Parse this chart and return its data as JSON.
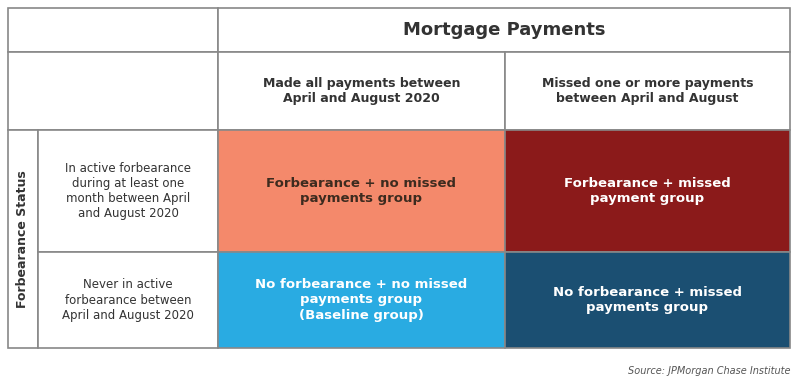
{
  "title": "Mortgage Payments",
  "forbearance_label": "Forbearance Status",
  "col_headers": [
    "Made all payments between\nApril and August 2020",
    "Missed one or more payments\nbetween April and August"
  ],
  "row_headers": [
    "In active forbearance\nduring at least one\nmonth between April\nand August 2020",
    "Never in active\nforbearance between\nApril and August 2020"
  ],
  "cell_texts": [
    [
      "Forbearance + no missed\npayments group",
      "Forbearance + missed\npayment group"
    ],
    [
      "No forbearance + no missed\npayments group\n(Baseline group)",
      "No forbearance + missed\npayments group"
    ]
  ],
  "cell_colors": [
    [
      "#F4896B",
      "#8B1A1A"
    ],
    [
      "#29ABE2",
      "#1B4F72"
    ]
  ],
  "cell_text_colors": [
    [
      "#3D2B1F",
      "#FFFFFF"
    ],
    [
      "#FFFFFF",
      "#FFFFFF"
    ]
  ],
  "source_text": "Source: JPMorgan Chase Institute",
  "background_color": "#FFFFFF",
  "header_bg": "#FFFFFF",
  "border_color": "#888888",
  "title_color": "#333333",
  "header_text_color": "#333333",
  "row_header_text_color": "#333333",
  "fig_width": 8.0,
  "fig_height": 3.77,
  "dpi": 100
}
